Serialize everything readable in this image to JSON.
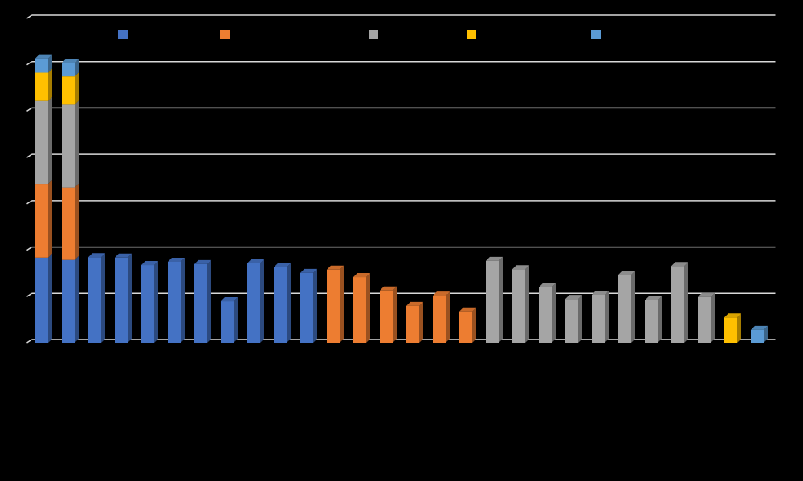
{
  "chart_data": {
    "type": "bar",
    "stacked": true,
    "three_d": true,
    "categories": [
      null,
      null,
      null,
      null,
      null,
      null,
      null,
      null,
      null,
      null,
      null,
      null,
      null,
      null,
      null,
      null,
      null,
      null,
      null,
      null,
      null,
      null,
      null,
      null,
      null,
      null,
      null,
      null
    ],
    "series": [
      {
        "color": "#4472c4",
        "values": [
          1.84,
          1.79,
          1.85,
          1.84,
          1.68,
          1.75,
          1.7,
          0.9,
          1.72,
          1.63,
          1.51,
          null,
          null,
          null,
          null,
          null,
          null,
          null,
          null,
          null,
          null,
          null,
          null,
          null,
          null,
          null,
          null,
          null
        ]
      },
      {
        "color": "#ed7d31",
        "values": [
          1.59,
          1.56,
          null,
          null,
          null,
          null,
          null,
          null,
          null,
          null,
          null,
          1.58,
          1.42,
          1.13,
          0.8,
          1.02,
          0.68,
          null,
          null,
          null,
          null,
          null,
          null,
          null,
          null,
          null,
          null,
          null
        ]
      },
      {
        "color": "#a5a5a5",
        "values": [
          1.79,
          1.79,
          null,
          null,
          null,
          null,
          null,
          null,
          null,
          null,
          null,
          null,
          null,
          null,
          null,
          null,
          null,
          1.77,
          1.59,
          1.2,
          0.95,
          1.04,
          1.47,
          0.92,
          1.66,
          0.99,
          null,
          null
        ]
      },
      {
        "color": "#ffc000",
        "values": [
          0.61,
          0.61,
          null,
          null,
          null,
          null,
          null,
          null,
          null,
          null,
          null,
          null,
          null,
          null,
          null,
          null,
          null,
          null,
          null,
          null,
          null,
          null,
          null,
          null,
          null,
          null,
          0.55,
          null
        ]
      },
      {
        "color": "#5b9bd5",
        "values": [
          0.31,
          0.29,
          null,
          null,
          null,
          null,
          null,
          null,
          null,
          null,
          null,
          null,
          null,
          null,
          null,
          null,
          null,
          null,
          null,
          null,
          null,
          null,
          null,
          null,
          null,
          null,
          null,
          0.28
        ]
      }
    ],
    "ylim": [
      0,
      7
    ],
    "yticks": [
      0,
      1,
      2,
      3,
      4,
      5,
      6,
      7
    ],
    "grid": true
  }
}
